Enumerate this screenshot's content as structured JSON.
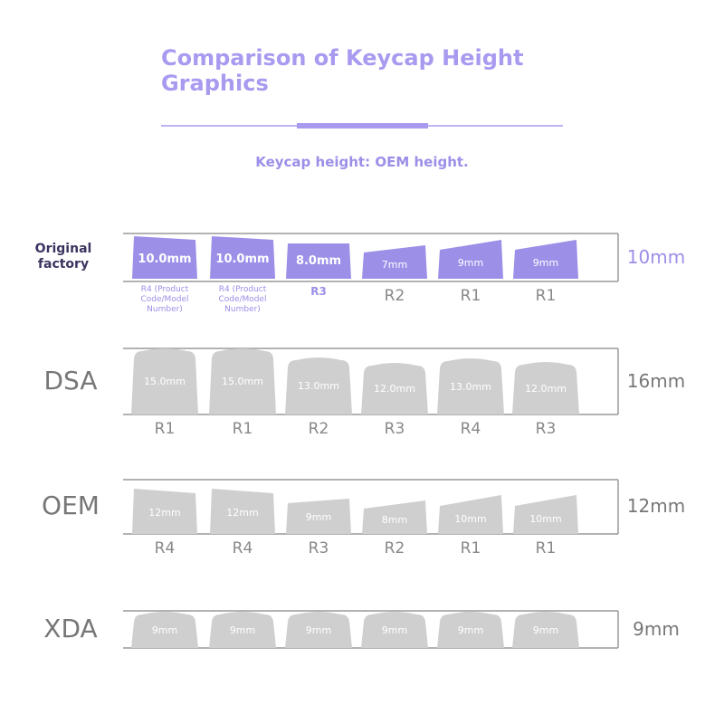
{
  "header": {
    "title": "Comparison of Keycap Height Graphics",
    "subtitle": "Keycap height: OEM height."
  },
  "rows": [
    {
      "label": "Original factory",
      "total": "10mm",
      "keys": [
        {
          "height": "10.0mm",
          "row": "R4 (Product Code/Model Number)"
        },
        {
          "height": "10.0mm",
          "row": "R4 (Product Code/Model Number)"
        },
        {
          "height": "8.0mm",
          "row": "R3"
        },
        {
          "height": "7mm",
          "row": "R2"
        },
        {
          "height": "9mm",
          "row": "R1"
        },
        {
          "height": "9mm",
          "row": "R1"
        }
      ]
    },
    {
      "label": "DSA",
      "total": "16mm",
      "keys": [
        {
          "height": "15.0mm",
          "row": "R1"
        },
        {
          "height": "15.0mm",
          "row": "R1"
        },
        {
          "height": "13.0mm",
          "row": "R2"
        },
        {
          "height": "12.0mm",
          "row": "R3"
        },
        {
          "height": "13.0mm",
          "row": "R4"
        },
        {
          "height": "12.0mm",
          "row": "R3"
        }
      ]
    },
    {
      "label": "OEM",
      "total": "12mm",
      "keys": [
        {
          "height": "12mm",
          "row": "R4"
        },
        {
          "height": "12mm",
          "row": "R4"
        },
        {
          "height": "9mm",
          "row": "R3"
        },
        {
          "height": "8mm",
          "row": "R2"
        },
        {
          "height": "10mm",
          "row": "R1"
        },
        {
          "height": "10mm",
          "row": "R1"
        }
      ]
    },
    {
      "label": "XDA",
      "total": "9mm",
      "keys": [
        {
          "height": "9mm"
        },
        {
          "height": "9mm"
        },
        {
          "height": "9mm"
        },
        {
          "height": "9mm"
        },
        {
          "height": "9mm"
        },
        {
          "height": "9mm"
        }
      ]
    }
  ]
}
